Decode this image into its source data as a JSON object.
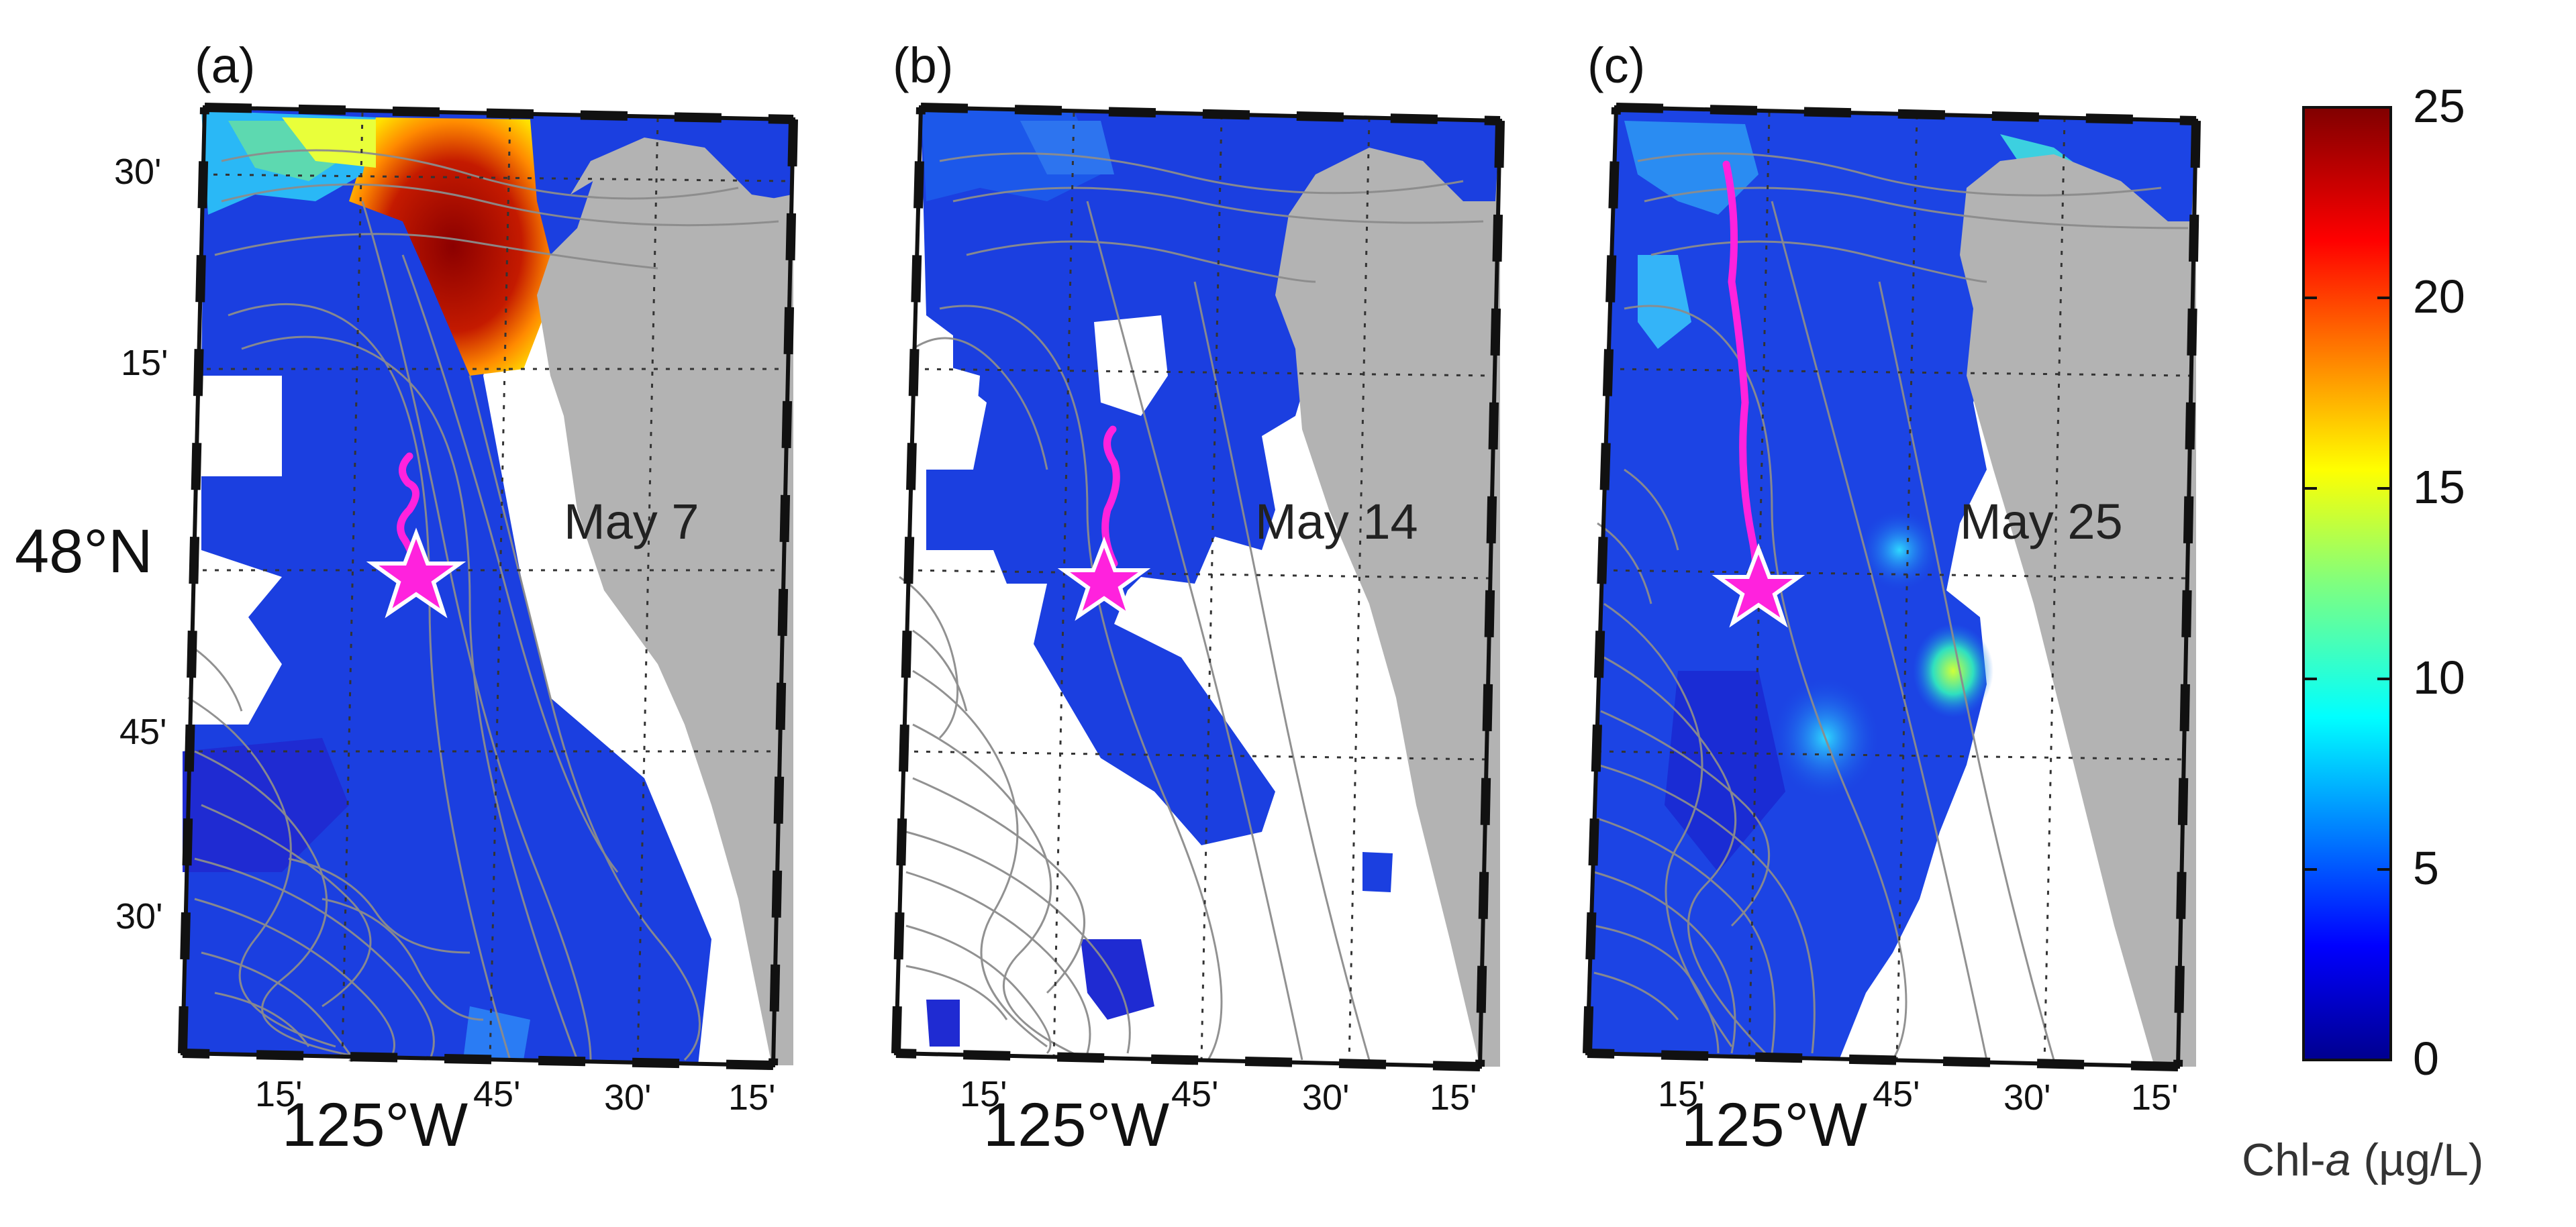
{
  "figure": {
    "panels": [
      {
        "label": "(a)",
        "date": "May 7",
        "lat_ticks": [
          "30'",
          "15'",
          "45'",
          "30'"
        ],
        "lat_main": "48°N",
        "lon_ticks": [
          "15'",
          "45'",
          "30'",
          "15'"
        ],
        "lon_main": "125°W"
      },
      {
        "label": "(b)",
        "date": "May 14",
        "lon_ticks": [
          "15'",
          "45'",
          "30'",
          "15'"
        ],
        "lon_main": "125°W"
      },
      {
        "label": "(c)",
        "date": "May 25",
        "lon_ticks": [
          "15'",
          "45'",
          "30'",
          "15'"
        ],
        "lon_main": "125°W"
      }
    ],
    "colorbar": {
      "ticks": [
        "25",
        "20",
        "15",
        "10",
        "5",
        "0"
      ],
      "label_prefix": "Chl-",
      "label_italic": "a",
      "label_suffix": " (µg/L)",
      "range": [
        0,
        25
      ],
      "colormap": "jet"
    },
    "colors": {
      "land": "#b3b3b3",
      "track": "#ff22dd",
      "contours": "#8c8c8c",
      "low": "#1a2fd6",
      "high": "#8b0000"
    },
    "markers": {
      "star": "station"
    }
  }
}
